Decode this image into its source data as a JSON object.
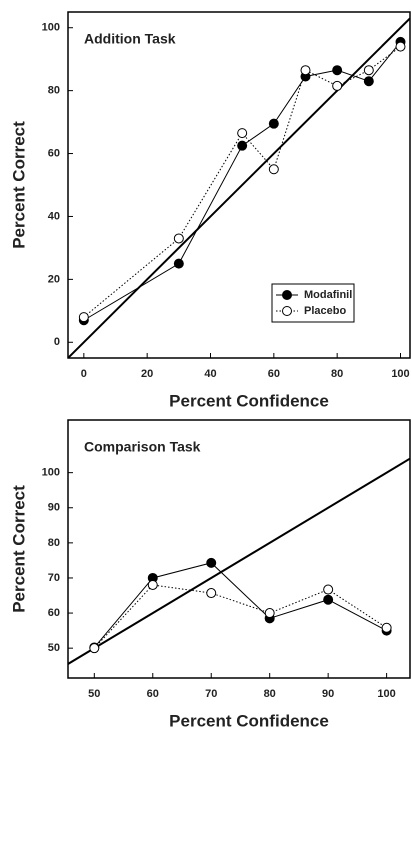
{
  "chart_data": [
    {
      "type": "line",
      "title": "Addition Task",
      "xlabel": "Percent Confidence",
      "ylabel": "Percent Correct",
      "x": [
        0,
        30,
        50,
        60,
        70,
        80,
        90,
        100
      ],
      "series": [
        {
          "name": "Modafinil",
          "color": "#000000",
          "marker": "filled",
          "linestyle": "solid",
          "values": [
            7,
            25,
            62.5,
            69.5,
            84.5,
            86.5,
            83,
            95.5
          ]
        },
        {
          "name": "Placebo",
          "color": "#000000",
          "marker": "open",
          "linestyle": "dotted",
          "values": [
            8,
            33,
            66.5,
            55,
            86.5,
            81.5,
            86.5,
            94
          ]
        }
      ],
      "xlim": [
        -5,
        103
      ],
      "ylim": [
        -5,
        105
      ],
      "xticks": [
        0,
        20,
        40,
        60,
        80,
        100
      ],
      "yticks": [
        0,
        20,
        40,
        60,
        80,
        100
      ],
      "legend": "lower right",
      "identity_line": true
    },
    {
      "type": "line",
      "title": "Comparison Task",
      "xlabel": "Percent Confidence",
      "ylabel": "Percent Correct",
      "x": [
        50,
        60,
        70,
        80,
        90,
        100
      ],
      "series": [
        {
          "color": "#000000",
          "marker": "filled",
          "linestyle": "solid",
          "values": [
            50.2,
            70,
            74.3,
            58.5,
            63.8,
            55
          ]
        },
        {
          "color": "#000000",
          "marker": "open",
          "linestyle": "dotted",
          "values": [
            50,
            68,
            65.7,
            60,
            66.7,
            55.8
          ]
        }
      ],
      "xlim": [
        45.5,
        104
      ],
      "ylim": [
        41.5,
        115
      ],
      "xticks": [
        50,
        60,
        70,
        80,
        90,
        100
      ],
      "yticks": [
        50,
        60,
        70,
        80,
        90,
        100
      ],
      "identity_line": true
    }
  ]
}
